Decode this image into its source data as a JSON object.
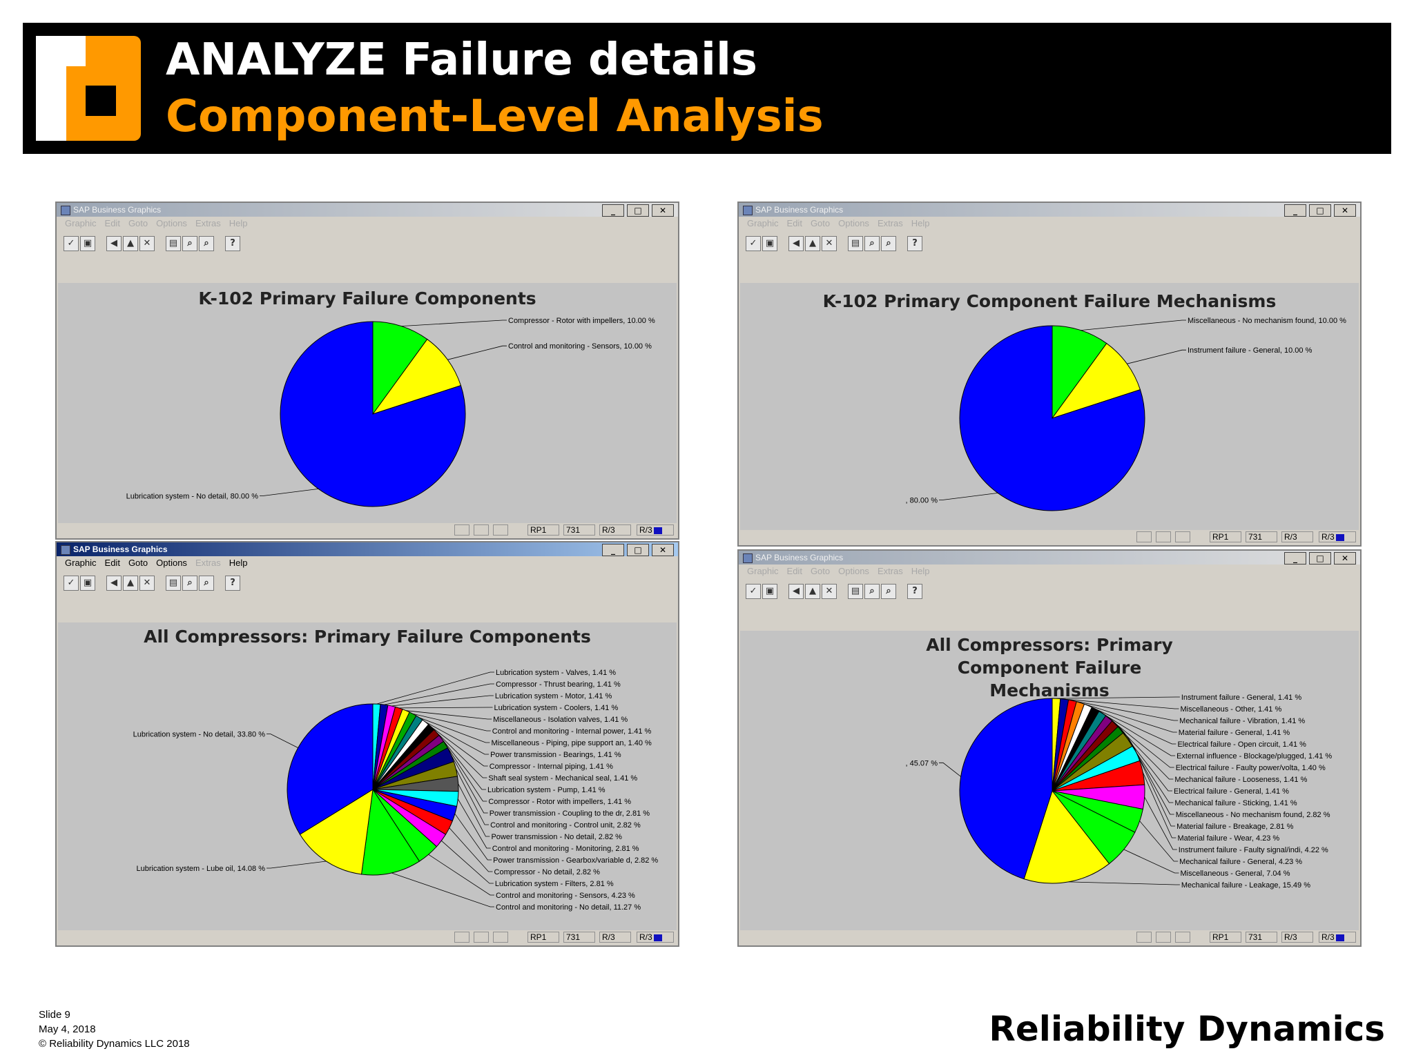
{
  "slide": {
    "title": "ANALYZE Failure details",
    "subtitle": "Component-Level Analysis",
    "footer_slide": "Slide 9",
    "footer_date": "May 4, 2018",
    "footer_copyright": "© Reliability Dynamics LLC 2018",
    "brand": "Reliability Dynamics"
  },
  "window": {
    "title": "SAP Business Graphics",
    "menu": [
      "Graphic",
      "Edit",
      "Goto",
      "Options",
      "Extras",
      "Help"
    ],
    "status_fields": [
      "RP1",
      "731",
      "R/3",
      "R/3"
    ]
  },
  "chart_data": [
    {
      "type": "pie",
      "title": "K-102 Primary Failure Components",
      "slices": [
        {
          "label": "Compressor - Rotor with impellers, 10.00 %",
          "value": 10.0,
          "color": "#00ff00"
        },
        {
          "label": "Control and monitoring - Sensors, 10.00 %",
          "value": 10.0,
          "color": "#ffff00"
        },
        {
          "label": "Lubrication system - No detail, 80.00 %",
          "value": 80.0,
          "color": "#0000ff"
        }
      ]
    },
    {
      "type": "pie",
      "title": "K-102 Primary Component Failure Mechanisms",
      "slices": [
        {
          "label": "Miscellaneous - No mechanism found, 10.00 %",
          "value": 10.0,
          "color": "#00ff00"
        },
        {
          "label": "Instrument failure - General, 10.00 %",
          "value": 10.0,
          "color": "#ffff00"
        },
        {
          "label": ", 80.00 %",
          "value": 80.0,
          "color": "#0000ff"
        }
      ]
    },
    {
      "type": "pie",
      "title": "All Compressors: Primary Failure Components",
      "slices": [
        {
          "label": "Lubrication system - Valves, 1.41 %",
          "value": 1.41,
          "color": "#00ffff"
        },
        {
          "label": "Compressor - Thrust bearing, 1.41 %",
          "value": 1.41,
          "color": "#0000aa"
        },
        {
          "label": "Lubrication system - Motor, 1.41 %",
          "value": 1.41,
          "color": "#ff00ff"
        },
        {
          "label": "Lubrication system - Coolers, 1.41 %",
          "value": 1.41,
          "color": "#ff0000"
        },
        {
          "label": "Miscellaneous - Isolation valves, 1.41 %",
          "value": 1.41,
          "color": "#ffff00"
        },
        {
          "label": "Control and monitoring - Internal power, 1.41 %",
          "value": 1.41,
          "color": "#00aa00"
        },
        {
          "label": "Miscellaneous - Piping, pipe support an, 1.40 %",
          "value": 1.4,
          "color": "#008080"
        },
        {
          "label": "Power transmission - Bearings, 1.41 %",
          "value": 1.41,
          "color": "#ffffff"
        },
        {
          "label": "Compressor - Internal piping, 1.41 %",
          "value": 1.41,
          "color": "#000000"
        },
        {
          "label": "Shaft seal system - Mechanical seal, 1.41 %",
          "value": 1.41,
          "color": "#800000"
        },
        {
          "label": "Lubrication system - Pump, 1.41 %",
          "value": 1.41,
          "color": "#800080"
        },
        {
          "label": "Compressor - Rotor with impellers, 1.41 %",
          "value": 1.41,
          "color": "#008000"
        },
        {
          "label": "Power transmission - Coupling to the dr, 2.81 %",
          "value": 2.81,
          "color": "#000080"
        },
        {
          "label": "Control and monitoring - Control unit, 2.82 %",
          "value": 2.82,
          "color": "#808000"
        },
        {
          "label": "Power transmission - No detail, 2.82 %",
          "value": 2.82,
          "color": "#555555"
        },
        {
          "label": "Control and monitoring - Monitoring, 2.81 %",
          "value": 2.81,
          "color": "#00ffff"
        },
        {
          "label": "Power transmission - Gearbox/variable d, 2.82 %",
          "value": 2.82,
          "color": "#0000ff"
        },
        {
          "label": "Compressor - No detail, 2.82 %",
          "value": 2.82,
          "color": "#ff0000"
        },
        {
          "label": "Lubrication system - Filters, 2.81 %",
          "value": 2.81,
          "color": "#ff00ff"
        },
        {
          "label": "Control and monitoring - Sensors, 4.23 %",
          "value": 4.23,
          "color": "#00ff00"
        },
        {
          "label": "Control and monitoring - No detail, 11.27 %",
          "value": 11.27,
          "color": "#00ff00"
        },
        {
          "label": "Lubrication system - Lube oil, 14.08 %",
          "value": 14.08,
          "color": "#ffff00"
        },
        {
          "label": "Lubrication system - No detail, 33.80 %",
          "value": 33.8,
          "color": "#0000ff"
        }
      ]
    },
    {
      "type": "pie",
      "title": "All Compressors: Primary Component Failure Mechanisms",
      "slices": [
        {
          "label": "Instrument failure - General, 1.41 %",
          "value": 1.41,
          "color": "#ffff00"
        },
        {
          "label": "Miscellaneous - Other, 1.41 %",
          "value": 1.41,
          "color": "#0000aa"
        },
        {
          "label": "Mechanical failure - Vibration, 1.41 %",
          "value": 1.41,
          "color": "#ff0000"
        },
        {
          "label": "Material failure - General, 1.41 %",
          "value": 1.41,
          "color": "#ff8000"
        },
        {
          "label": "Electrical failure - Open circuit, 1.41 %",
          "value": 1.41,
          "color": "#ffffff"
        },
        {
          "label": "External influence - Blockage/plugged, 1.41 %",
          "value": 1.41,
          "color": "#000000"
        },
        {
          "label": "Electrical failure - Faulty power/volta, 1.40 %",
          "value": 1.4,
          "color": "#008080"
        },
        {
          "label": "Mechanical failure - Looseness, 1.41 %",
          "value": 1.41,
          "color": "#800080"
        },
        {
          "label": "Electrical failure - General, 1.41 %",
          "value": 1.41,
          "color": "#800000"
        },
        {
          "label": "Mechanical failure - Sticking, 1.41 %",
          "value": 1.41,
          "color": "#008000"
        },
        {
          "label": "Miscellaneous - No mechanism found, 2.82 %",
          "value": 2.82,
          "color": "#808000"
        },
        {
          "label": "Material failure - Breakage, 2.81 %",
          "value": 2.81,
          "color": "#00ffff"
        },
        {
          "label": "Material failure - Wear, 4.23 %",
          "value": 4.23,
          "color": "#ff0000"
        },
        {
          "label": "Instrument failure - Faulty signal/indi, 4.22 %",
          "value": 4.22,
          "color": "#ff00ff"
        },
        {
          "label": "Mechanical failure - General, 4.23 %",
          "value": 4.23,
          "color": "#00ff00"
        },
        {
          "label": "Miscellaneous - General, 7.04 %",
          "value": 7.04,
          "color": "#00ff00"
        },
        {
          "label": "Mechanical failure - Leakage, 15.49 %",
          "value": 15.49,
          "color": "#ffff00"
        },
        {
          "label": ", 45.07 %",
          "value": 45.07,
          "color": "#0000ff"
        }
      ]
    }
  ]
}
